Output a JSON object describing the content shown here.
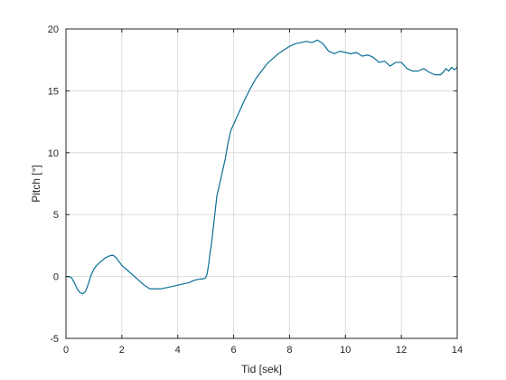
{
  "chart_data": {
    "type": "line",
    "title": "",
    "xlabel": "Tid [sek]",
    "ylabel": "Pitch [°]",
    "xlim": [
      0,
      14
    ],
    "ylim": [
      -5,
      20
    ],
    "xticks": [
      0,
      2,
      4,
      6,
      8,
      10,
      12,
      14
    ],
    "yticks": [
      -5,
      0,
      5,
      10,
      15,
      20
    ],
    "xtick_labels": [
      "0",
      "2",
      "4",
      "6",
      "8",
      "10",
      "12",
      "14"
    ],
    "ytick_labels": [
      "-5",
      "0",
      "5",
      "10",
      "15",
      "20"
    ],
    "grid": true,
    "legend": "none",
    "line_color": "#0a6e96",
    "series": [
      {
        "x": [
          0,
          0.1,
          0.2,
          0.3,
          0.4,
          0.5,
          0.6,
          0.7,
          0.8,
          0.9,
          1.0,
          1.1,
          1.2,
          1.3,
          1.4,
          1.5,
          1.6,
          1.7,
          1.8,
          1.9,
          2.0,
          2.2,
          2.4,
          2.6,
          2.8,
          3.0,
          3.2,
          3.4,
          3.6,
          3.8,
          4.0,
          4.2,
          4.4,
          4.6,
          4.8,
          4.9,
          5.0,
          5.05,
          5.1,
          5.15,
          5.2,
          5.3,
          5.4,
          5.5,
          5.6,
          5.7,
          5.8,
          5.9,
          6.0,
          6.1,
          6.2,
          6.4,
          6.6,
          6.8,
          7.0,
          7.2,
          7.4,
          7.6,
          7.8,
          8.0,
          8.2,
          8.4,
          8.6,
          8.8,
          9.0,
          9.2,
          9.4,
          9.6,
          9.8,
          10.0,
          10.2,
          10.4,
          10.6,
          10.8,
          11.0,
          11.2,
          11.4,
          11.6,
          11.8,
          12.0,
          12.2,
          12.4,
          12.6,
          12.8,
          13.0,
          13.2,
          13.4,
          13.5,
          13.6,
          13.7,
          13.8,
          13.9,
          14.0
        ],
        "y": [
          0.0,
          0.0,
          -0.1,
          -0.5,
          -1.0,
          -1.3,
          -1.4,
          -1.2,
          -0.6,
          0.1,
          0.6,
          0.9,
          1.1,
          1.3,
          1.5,
          1.6,
          1.7,
          1.7,
          1.5,
          1.2,
          0.9,
          0.5,
          0.1,
          -0.3,
          -0.7,
          -1.0,
          -1.0,
          -1.0,
          -0.9,
          -0.8,
          -0.7,
          -0.6,
          -0.5,
          -0.3,
          -0.2,
          -0.2,
          -0.1,
          0.2,
          0.9,
          1.8,
          2.5,
          4.5,
          6.5,
          7.5,
          8.5,
          9.5,
          10.8,
          11.8,
          12.3,
          12.8,
          13.3,
          14.3,
          15.2,
          16.0,
          16.6,
          17.2,
          17.6,
          18.0,
          18.3,
          18.6,
          18.8,
          18.9,
          19.0,
          18.9,
          19.1,
          18.8,
          18.2,
          18.0,
          18.2,
          18.1,
          18.0,
          18.1,
          17.8,
          17.9,
          17.7,
          17.3,
          17.4,
          17.0,
          17.3,
          17.3,
          16.8,
          16.6,
          16.6,
          16.8,
          16.5,
          16.3,
          16.3,
          16.5,
          16.8,
          16.6,
          16.9,
          16.7,
          16.9
        ]
      }
    ]
  }
}
